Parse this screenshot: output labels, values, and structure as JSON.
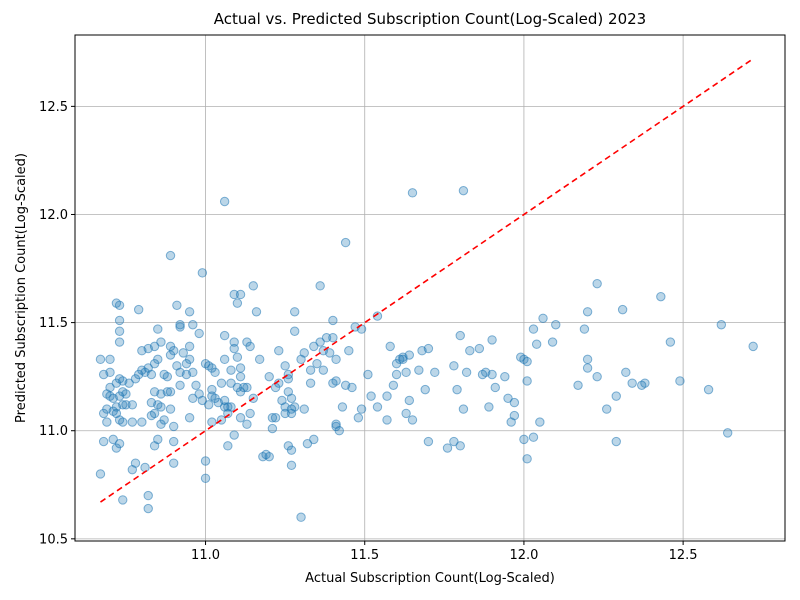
{
  "chart_data": {
    "type": "scatter",
    "title": "Actual vs. Predicted Subscription Count(Log-Scaled) 2023",
    "xlabel": "Actual Subscription Count(Log-Scaled)",
    "ylabel": "Predicted Subscription Count(Log-Scaled)",
    "xlim": [
      10.59,
      12.82
    ],
    "ylim": [
      10.49,
      12.83
    ],
    "xticks": [
      "11.0",
      "11.5",
      "12.0",
      "12.5"
    ],
    "yticks": [
      "10.5",
      "11.0",
      "11.5",
      "12.0",
      "12.5"
    ],
    "grid": true,
    "colors": {
      "points": "#1f77b4",
      "reference_line": "#ff0000"
    },
    "reference_line": {
      "style": "dashed",
      "x": [
        10.67,
        12.72
      ],
      "y": [
        10.67,
        12.72
      ]
    },
    "points": [
      [
        10.67,
        11.33
      ],
      [
        10.67,
        10.8
      ],
      [
        10.68,
        11.26
      ],
      [
        10.68,
        11.08
      ],
      [
        10.68,
        10.95
      ],
      [
        10.69,
        11.17
      ],
      [
        10.69,
        11.04
      ],
      [
        10.69,
        11.1
      ],
      [
        10.7,
        11.33
      ],
      [
        10.7,
        11.27
      ],
      [
        10.7,
        11.2
      ],
      [
        10.7,
        11.16
      ],
      [
        10.71,
        11.09
      ],
      [
        10.71,
        10.96
      ],
      [
        10.71,
        11.15
      ],
      [
        10.72,
        11.59
      ],
      [
        10.72,
        11.22
      ],
      [
        10.72,
        11.11
      ],
      [
        10.72,
        11.08
      ],
      [
        10.72,
        10.92
      ],
      [
        10.73,
        11.51
      ],
      [
        10.73,
        11.46
      ],
      [
        10.73,
        11.41
      ],
      [
        10.73,
        11.58
      ],
      [
        10.73,
        11.24
      ],
      [
        10.73,
        11.16
      ],
      [
        10.73,
        11.05
      ],
      [
        10.73,
        10.94
      ],
      [
        10.74,
        11.23
      ],
      [
        10.74,
        11.18
      ],
      [
        10.74,
        11.12
      ],
      [
        10.74,
        11.04
      ],
      [
        10.74,
        10.68
      ],
      [
        10.75,
        11.17
      ],
      [
        10.75,
        11.12
      ],
      [
        10.76,
        11.22
      ],
      [
        10.77,
        11.12
      ],
      [
        10.77,
        11.04
      ],
      [
        10.77,
        10.82
      ],
      [
        10.78,
        11.24
      ],
      [
        10.78,
        10.85
      ],
      [
        10.79,
        11.56
      ],
      [
        10.79,
        11.26
      ],
      [
        10.8,
        11.37
      ],
      [
        10.8,
        11.28
      ],
      [
        10.8,
        11.04
      ],
      [
        10.81,
        11.27
      ],
      [
        10.81,
        10.83
      ],
      [
        10.82,
        11.38
      ],
      [
        10.82,
        11.29
      ],
      [
        10.82,
        10.7
      ],
      [
        10.82,
        10.64
      ],
      [
        10.83,
        11.13
      ],
      [
        10.83,
        11.07
      ],
      [
        10.83,
        11.26
      ],
      [
        10.84,
        11.39
      ],
      [
        10.84,
        11.31
      ],
      [
        10.84,
        11.18
      ],
      [
        10.84,
        11.08
      ],
      [
        10.84,
        10.93
      ],
      [
        10.85,
        11.47
      ],
      [
        10.85,
        11.33
      ],
      [
        10.85,
        11.12
      ],
      [
        10.85,
        10.96
      ],
      [
        10.86,
        11.41
      ],
      [
        10.86,
        11.17
      ],
      [
        10.86,
        11.11
      ],
      [
        10.86,
        11.03
      ],
      [
        10.87,
        11.05
      ],
      [
        10.87,
        11.26
      ],
      [
        10.88,
        11.25
      ],
      [
        10.88,
        11.18
      ],
      [
        10.89,
        11.81
      ],
      [
        10.89,
        11.39
      ],
      [
        10.89,
        11.35
      ],
      [
        10.89,
        11.18
      ],
      [
        10.89,
        11.1
      ],
      [
        10.9,
        11.37
      ],
      [
        10.9,
        11.02
      ],
      [
        10.9,
        10.95
      ],
      [
        10.9,
        10.85
      ],
      [
        10.91,
        11.58
      ],
      [
        10.91,
        11.3
      ],
      [
        10.92,
        11.49
      ],
      [
        10.92,
        11.48
      ],
      [
        10.92,
        11.27
      ],
      [
        10.92,
        11.21
      ],
      [
        10.93,
        11.36
      ],
      [
        10.94,
        11.31
      ],
      [
        10.94,
        11.26
      ],
      [
        10.95,
        11.55
      ],
      [
        10.95,
        11.39
      ],
      [
        10.95,
        11.33
      ],
      [
        10.95,
        11.06
      ],
      [
        10.96,
        11.49
      ],
      [
        10.96,
        11.27
      ],
      [
        10.96,
        11.15
      ],
      [
        10.97,
        11.21
      ],
      [
        10.98,
        11.45
      ],
      [
        10.98,
        11.17
      ],
      [
        10.99,
        11.73
      ],
      [
        10.99,
        11.14
      ],
      [
        11.0,
        11.31
      ],
      [
        11.0,
        10.86
      ],
      [
        11.0,
        10.78
      ],
      [
        11.01,
        11.3
      ],
      [
        11.01,
        11.12
      ],
      [
        11.02,
        11.29
      ],
      [
        11.02,
        11.19
      ],
      [
        11.02,
        11.16
      ],
      [
        11.02,
        11.04
      ],
      [
        11.03,
        11.27
      ],
      [
        11.03,
        11.15
      ],
      [
        11.04,
        11.13
      ],
      [
        11.05,
        11.05
      ],
      [
        11.05,
        11.22
      ],
      [
        11.06,
        12.06
      ],
      [
        11.06,
        11.44
      ],
      [
        11.06,
        11.33
      ],
      [
        11.06,
        11.14
      ],
      [
        11.06,
        11.11
      ],
      [
        11.07,
        11.11
      ],
      [
        11.07,
        11.08
      ],
      [
        11.07,
        10.93
      ],
      [
        11.08,
        11.28
      ],
      [
        11.08,
        11.22
      ],
      [
        11.08,
        11.11
      ],
      [
        11.09,
        11.63
      ],
      [
        11.09,
        11.41
      ],
      [
        11.09,
        11.38
      ],
      [
        11.09,
        10.98
      ],
      [
        11.1,
        11.59
      ],
      [
        11.1,
        11.34
      ],
      [
        11.1,
        11.2
      ],
      [
        11.11,
        11.63
      ],
      [
        11.11,
        11.29
      ],
      [
        11.11,
        11.25
      ],
      [
        11.11,
        11.18
      ],
      [
        11.11,
        11.06
      ],
      [
        11.12,
        11.2
      ],
      [
        11.13,
        11.41
      ],
      [
        11.13,
        11.2
      ],
      [
        11.13,
        11.03
      ],
      [
        11.14,
        11.39
      ],
      [
        11.14,
        11.08
      ],
      [
        11.15,
        11.67
      ],
      [
        11.15,
        11.15
      ],
      [
        11.16,
        11.55
      ],
      [
        11.17,
        11.33
      ],
      [
        11.18,
        10.88
      ],
      [
        11.19,
        10.89
      ],
      [
        11.2,
        11.25
      ],
      [
        11.2,
        10.88
      ],
      [
        11.21,
        11.06
      ],
      [
        11.21,
        11.01
      ],
      [
        11.22,
        11.06
      ],
      [
        11.22,
        11.2
      ],
      [
        11.23,
        11.37
      ],
      [
        11.23,
        11.22
      ],
      [
        11.24,
        11.14
      ],
      [
        11.25,
        11.08
      ],
      [
        11.25,
        11.11
      ],
      [
        11.25,
        11.3
      ],
      [
        11.26,
        11.26
      ],
      [
        11.26,
        11.24
      ],
      [
        11.26,
        11.18
      ],
      [
        11.26,
        10.93
      ],
      [
        11.27,
        11.15
      ],
      [
        11.27,
        11.1
      ],
      [
        11.27,
        11.08
      ],
      [
        11.27,
        10.91
      ],
      [
        11.27,
        10.84
      ],
      [
        11.28,
        11.55
      ],
      [
        11.28,
        11.46
      ],
      [
        11.28,
        11.11
      ],
      [
        11.3,
        11.33
      ],
      [
        11.3,
        10.6
      ],
      [
        11.31,
        11.36
      ],
      [
        11.31,
        11.1
      ],
      [
        11.32,
        10.94
      ],
      [
        11.33,
        11.28
      ],
      [
        11.33,
        11.22
      ],
      [
        11.34,
        10.96
      ],
      [
        11.34,
        11.39
      ],
      [
        11.35,
        11.31
      ],
      [
        11.36,
        11.67
      ],
      [
        11.36,
        11.41
      ],
      [
        11.37,
        11.28
      ],
      [
        11.37,
        11.37
      ],
      [
        11.38,
        11.43
      ],
      [
        11.39,
        11.36
      ],
      [
        11.4,
        11.43
      ],
      [
        11.4,
        11.51
      ],
      [
        11.4,
        11.22
      ],
      [
        11.41,
        11.33
      ],
      [
        11.41,
        11.03
      ],
      [
        11.41,
        11.02
      ],
      [
        11.41,
        11.23
      ],
      [
        11.42,
        11.0
      ],
      [
        11.43,
        11.11
      ],
      [
        11.44,
        11.87
      ],
      [
        11.44,
        11.21
      ],
      [
        11.45,
        11.37
      ],
      [
        11.46,
        11.2
      ],
      [
        11.47,
        11.48
      ],
      [
        11.48,
        11.06
      ],
      [
        11.49,
        11.47
      ],
      [
        11.49,
        11.1
      ],
      [
        11.51,
        11.26
      ],
      [
        11.52,
        11.16
      ],
      [
        11.54,
        11.53
      ],
      [
        11.54,
        11.11
      ],
      [
        11.57,
        11.16
      ],
      [
        11.57,
        11.05
      ],
      [
        11.58,
        11.39
      ],
      [
        11.59,
        11.21
      ],
      [
        11.6,
        11.31
      ],
      [
        11.6,
        11.26
      ],
      [
        11.61,
        11.33
      ],
      [
        11.62,
        11.33
      ],
      [
        11.62,
        11.34
      ],
      [
        11.63,
        11.27
      ],
      [
        11.63,
        11.08
      ],
      [
        11.64,
        11.35
      ],
      [
        11.64,
        11.14
      ],
      [
        11.65,
        12.1
      ],
      [
        11.65,
        11.05
      ],
      [
        11.67,
        11.28
      ],
      [
        11.68,
        11.37
      ],
      [
        11.69,
        11.19
      ],
      [
        11.7,
        11.38
      ],
      [
        11.7,
        10.95
      ],
      [
        11.72,
        11.27
      ],
      [
        11.76,
        10.92
      ],
      [
        11.78,
        11.3
      ],
      [
        11.78,
        10.95
      ],
      [
        11.79,
        11.19
      ],
      [
        11.8,
        10.93
      ],
      [
        11.8,
        11.44
      ],
      [
        11.81,
        11.1
      ],
      [
        11.81,
        12.11
      ],
      [
        11.82,
        11.27
      ],
      [
        11.83,
        11.37
      ],
      [
        11.86,
        11.38
      ],
      [
        11.87,
        11.26
      ],
      [
        11.88,
        11.27
      ],
      [
        11.89,
        11.11
      ],
      [
        11.9,
        11.26
      ],
      [
        11.9,
        11.42
      ],
      [
        11.91,
        11.2
      ],
      [
        11.94,
        11.25
      ],
      [
        11.95,
        11.15
      ],
      [
        11.96,
        11.04
      ],
      [
        11.97,
        11.07
      ],
      [
        11.97,
        11.13
      ],
      [
        11.99,
        11.34
      ],
      [
        12.0,
        11.33
      ],
      [
        12.0,
        10.96
      ],
      [
        12.01,
        11.32
      ],
      [
        12.01,
        10.87
      ],
      [
        12.01,
        11.23
      ],
      [
        12.03,
        11.47
      ],
      [
        12.03,
        10.97
      ],
      [
        12.04,
        11.4
      ],
      [
        12.05,
        11.04
      ],
      [
        12.06,
        11.52
      ],
      [
        12.09,
        11.41
      ],
      [
        12.1,
        11.49
      ],
      [
        12.17,
        11.21
      ],
      [
        12.19,
        11.47
      ],
      [
        12.2,
        11.55
      ],
      [
        12.2,
        11.33
      ],
      [
        12.2,
        11.29
      ],
      [
        12.23,
        11.25
      ],
      [
        12.23,
        11.68
      ],
      [
        12.26,
        11.1
      ],
      [
        12.29,
        11.16
      ],
      [
        12.29,
        10.95
      ],
      [
        12.31,
        11.56
      ],
      [
        12.32,
        11.27
      ],
      [
        12.34,
        11.22
      ],
      [
        12.37,
        11.21
      ],
      [
        12.38,
        11.22
      ],
      [
        12.43,
        11.62
      ],
      [
        12.46,
        11.41
      ],
      [
        12.49,
        11.23
      ],
      [
        12.58,
        11.19
      ],
      [
        12.62,
        11.49
      ],
      [
        12.64,
        10.99
      ],
      [
        12.72,
        11.39
      ]
    ]
  }
}
